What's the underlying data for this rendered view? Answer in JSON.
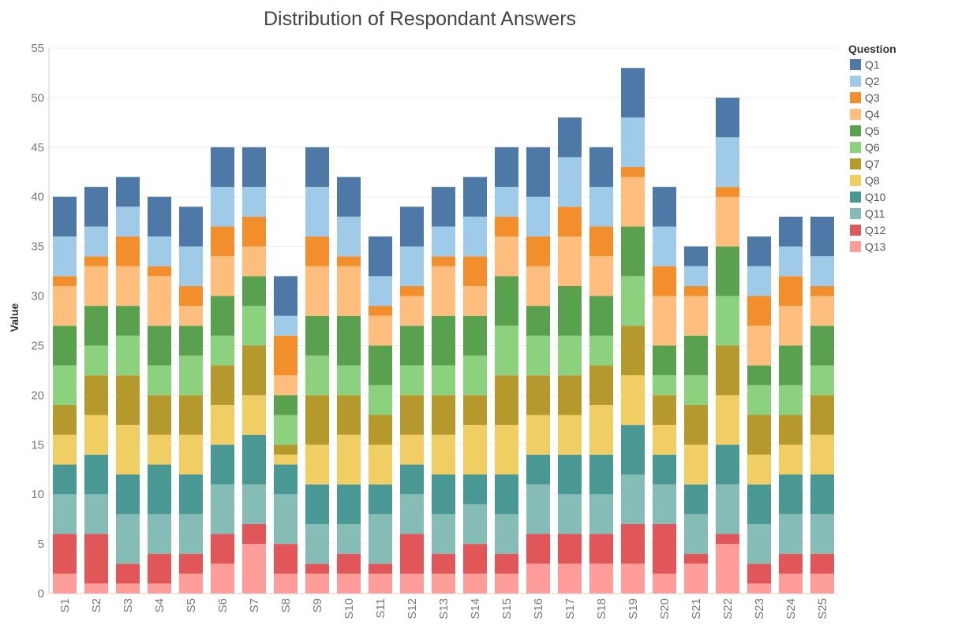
{
  "chart_data": {
    "type": "bar",
    "stacked": true,
    "title": "Distribution of Respondant Answers",
    "xlabel": "",
    "ylabel": "Value",
    "ylim": [
      0,
      55
    ],
    "yticks": [
      0,
      5,
      10,
      15,
      20,
      25,
      30,
      35,
      40,
      45,
      50,
      55
    ],
    "grid": true,
    "legend_title": "Question",
    "legend_position": "right",
    "categories": [
      "S1",
      "S2",
      "S3",
      "S4",
      "S5",
      "S6",
      "S7",
      "S8",
      "S9",
      "S10",
      "S11",
      "S12",
      "S13",
      "S14",
      "S15",
      "S16",
      "S17",
      "S18",
      "S19",
      "S20",
      "S21",
      "S22",
      "S23",
      "S24",
      "S25"
    ],
    "series": [
      {
        "name": "Q13",
        "color": "#FF9D9A",
        "values": [
          2,
          1,
          1,
          1,
          2,
          3,
          5,
          2,
          2,
          2,
          2,
          2,
          2,
          2,
          2,
          3,
          3,
          3,
          3,
          2,
          3,
          5,
          1,
          2,
          2
        ]
      },
      {
        "name": "Q12",
        "color": "#E15759",
        "values": [
          4,
          5,
          2,
          3,
          2,
          3,
          2,
          3,
          1,
          2,
          1,
          4,
          2,
          3,
          2,
          3,
          3,
          3,
          4,
          5,
          1,
          1,
          2,
          2,
          2
        ]
      },
      {
        "name": "Q11",
        "color": "#86BCB6",
        "values": [
          4,
          4,
          5,
          4,
          4,
          5,
          4,
          5,
          4,
          3,
          5,
          4,
          4,
          4,
          4,
          5,
          4,
          4,
          5,
          4,
          4,
          5,
          4,
          4,
          4
        ]
      },
      {
        "name": "Q10",
        "color": "#499894",
        "values": [
          3,
          4,
          4,
          5,
          4,
          4,
          5,
          3,
          4,
          4,
          3,
          3,
          4,
          3,
          4,
          3,
          4,
          4,
          5,
          3,
          3,
          4,
          4,
          4,
          4
        ]
      },
      {
        "name": "Q8",
        "color": "#F1CE63",
        "values": [
          3,
          4,
          5,
          3,
          4,
          4,
          4,
          1,
          4,
          5,
          4,
          3,
          4,
          5,
          5,
          4,
          4,
          5,
          5,
          3,
          4,
          5,
          3,
          3,
          4
        ]
      },
      {
        "name": "Q7",
        "color": "#B6992D",
        "values": [
          3,
          4,
          5,
          4,
          4,
          4,
          5,
          1,
          5,
          4,
          3,
          4,
          4,
          3,
          5,
          4,
          4,
          4,
          5,
          3,
          4,
          5,
          4,
          3,
          4
        ]
      },
      {
        "name": "Q6",
        "color": "#8CD17D",
        "values": [
          4,
          3,
          4,
          3,
          4,
          3,
          4,
          3,
          4,
          3,
          3,
          3,
          3,
          4,
          5,
          4,
          4,
          3,
          5,
          2,
          3,
          5,
          3,
          3,
          3
        ]
      },
      {
        "name": "Q5",
        "color": "#59A14F",
        "values": [
          4,
          4,
          3,
          4,
          3,
          4,
          3,
          2,
          4,
          5,
          4,
          4,
          5,
          4,
          5,
          3,
          5,
          4,
          5,
          3,
          4,
          5,
          2,
          4,
          4
        ]
      },
      {
        "name": "Q4",
        "color": "#FFBE7D",
        "values": [
          4,
          4,
          4,
          5,
          2,
          4,
          3,
          2,
          5,
          5,
          3,
          3,
          5,
          3,
          4,
          4,
          5,
          4,
          5,
          5,
          4,
          5,
          4,
          4,
          3
        ]
      },
      {
        "name": "Q3",
        "color": "#F28E2B",
        "values": [
          1,
          1,
          3,
          1,
          2,
          3,
          3,
          4,
          3,
          1,
          1,
          1,
          1,
          3,
          2,
          3,
          3,
          3,
          1,
          3,
          1,
          1,
          3,
          3,
          1
        ]
      },
      {
        "name": "Q2",
        "color": "#A0CBE8",
        "values": [
          4,
          3,
          3,
          3,
          4,
          4,
          3,
          2,
          5,
          4,
          3,
          4,
          3,
          4,
          3,
          4,
          5,
          4,
          5,
          4,
          2,
          5,
          3,
          3,
          3
        ]
      },
      {
        "name": "Q1",
        "color": "#4E79A7",
        "values": [
          4,
          4,
          3,
          4,
          4,
          4,
          4,
          4,
          4,
          4,
          4,
          4,
          4,
          4,
          4,
          5,
          4,
          4,
          5,
          4,
          2,
          4,
          3,
          3,
          4
        ]
      }
    ],
    "legend_order": [
      "Q1",
      "Q2",
      "Q3",
      "Q4",
      "Q5",
      "Q6",
      "Q7",
      "Q8",
      "Q10",
      "Q11",
      "Q12",
      "Q13"
    ]
  }
}
